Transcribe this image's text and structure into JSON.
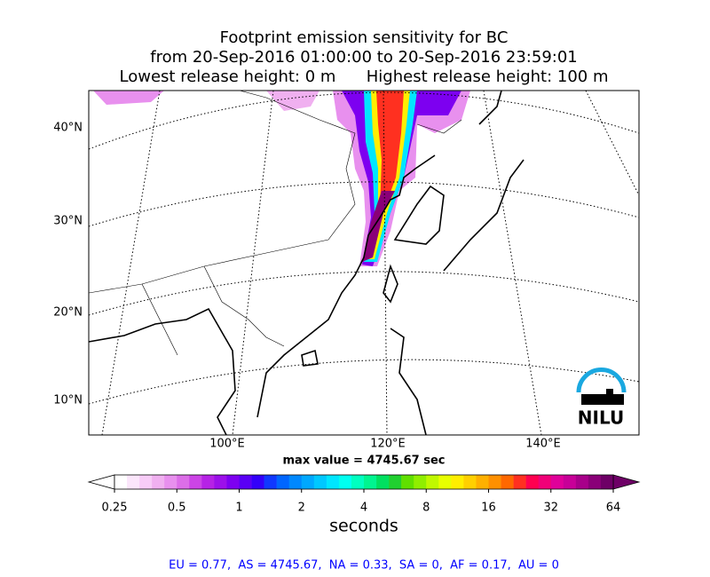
{
  "header": {
    "title_lines": [
      "Footprint emission sensitivity for BC",
      "from 20-Sep-2016 01:00:00 to 20-Sep-2016 23:59:01",
      "Lowest release height: 0 m      Highest release height: 100 m"
    ]
  },
  "map": {
    "lat_labels": [
      "40°N",
      "30°N",
      "20°N",
      "10°N"
    ],
    "lon_labels": [
      "100°E",
      "120°E",
      "140°E"
    ],
    "max_value_text": "max value = 4745.67 sec",
    "logo": "NILU"
  },
  "colorbar": {
    "label": "seconds",
    "log_scale": true,
    "lim": [
      0.25,
      64
    ],
    "ticks": [
      0.25,
      0.5,
      1,
      2,
      4,
      8,
      16,
      32,
      64
    ],
    "colors": [
      "#ffffff",
      "#fbe6fb",
      "#f7ccf7",
      "#f0b0f0",
      "#e890ee",
      "#dc6ee8",
      "#cc44e6",
      "#b622e6",
      "#9c10ea",
      "#7d00f0",
      "#5a00f5",
      "#3300fa",
      "#1038ff",
      "#0066ff",
      "#0088ff",
      "#00a8ff",
      "#00c8ff",
      "#00e6ff",
      "#00fff0",
      "#00ffc0",
      "#00f590",
      "#00e060",
      "#20d030",
      "#60e000",
      "#90ee00",
      "#c0f800",
      "#e8ff00",
      "#ffee00",
      "#ffd000",
      "#ffb000",
      "#ff9000",
      "#ff6800",
      "#ff3020",
      "#ff0050",
      "#f00078",
      "#e0009a",
      "#c80098",
      "#a8008a",
      "#8a0078",
      "#6e0066"
    ]
  },
  "footer": {
    "text": "EU = 0.77,  AS = 4745.67,  NA = 0.33,  SA = 0,  AF = 0.17,  AU = 0"
  }
}
